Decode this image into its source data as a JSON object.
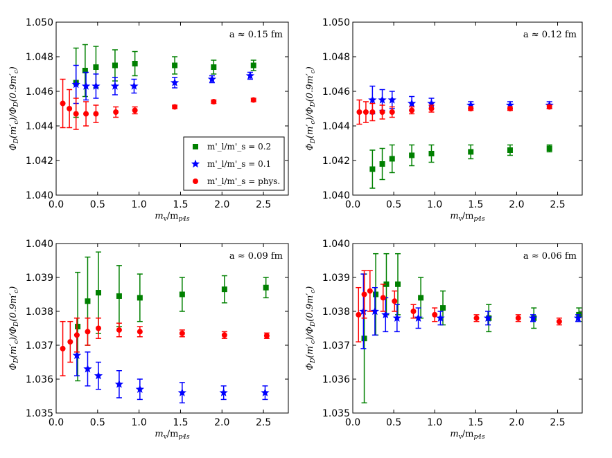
{
  "chart_data": [
    {
      "type": "scatter",
      "title": "",
      "annotation": "a ≈ 0.15 fm",
      "xlabel": "m_v/m_p4s",
      "ylabel": "Φ_D(m'_c)/Φ_D(0.9m'_c)",
      "xlim": [
        0,
        2.8
      ],
      "ylim": [
        1.04,
        1.05
      ],
      "xticks": [
        "0.0",
        "0.5",
        "1.0",
        "1.5",
        "2.0",
        "2.5"
      ],
      "yticks": [
        "1.040",
        "1.042",
        "1.044",
        "1.046",
        "1.048",
        "1.050"
      ],
      "legend": "bottom-right",
      "series": [
        {
          "name": "m'_l/m'_s = 0.2",
          "color": "#008000",
          "marker": "square",
          "x": [
            0.24,
            0.35,
            0.48,
            0.71,
            0.95,
            1.43,
            1.9,
            2.38
          ],
          "y": [
            1.0465,
            1.0472,
            1.0474,
            1.0475,
            1.0476,
            1.0475,
            1.0474,
            1.0475
          ],
          "err": [
            0.002,
            0.0015,
            0.0012,
            0.0009,
            0.0007,
            0.0005,
            0.0004,
            0.0003
          ]
        },
        {
          "name": "m'_l/m'_s = 0.1",
          "color": "#0000ff",
          "marker": "star",
          "x": [
            0.24,
            0.36,
            0.48,
            0.71,
            0.94,
            1.43,
            1.88,
            2.34
          ],
          "y": [
            1.0464,
            1.0463,
            1.0463,
            1.0463,
            1.0463,
            1.0465,
            1.0467,
            1.0469
          ],
          "err": [
            0.0011,
            0.0008,
            0.0007,
            0.0005,
            0.0004,
            0.0003,
            0.0002,
            0.0002
          ]
        },
        {
          "name": "m'_l/m'_s = phys.",
          "color": "#ff0000",
          "marker": "circle",
          "x": [
            0.08,
            0.16,
            0.24,
            0.36,
            0.48,
            0.72,
            0.95,
            1.43,
            1.9,
            2.38
          ],
          "y": [
            1.0453,
            1.045,
            1.0447,
            1.0447,
            1.0447,
            1.0448,
            1.0449,
            1.0451,
            1.0454,
            1.0455
          ],
          "err": [
            0.0014,
            0.0011,
            0.0009,
            0.0007,
            0.0005,
            0.0003,
            0.0002,
            0.0001,
            0.0001,
            0.0001
          ]
        }
      ]
    },
    {
      "type": "scatter",
      "title": "",
      "annotation": "a ≈ 0.12 fm",
      "xlabel": "m_v/m_p4s",
      "ylabel": "Φ_D(m'_c)/Φ_D(0.9m'_c)",
      "xlim": [
        0,
        2.8
      ],
      "ylim": [
        1.04,
        1.05
      ],
      "xticks": [
        "0.0",
        "0.5",
        "1.0",
        "1.5",
        "2.0",
        "2.5"
      ],
      "yticks": [
        "1.040",
        "1.042",
        "1.044",
        "1.046",
        "1.048",
        "1.050"
      ],
      "legend": "",
      "series": [
        {
          "name": "m'_l/m'_s = 0.2",
          "color": "#008000",
          "marker": "square",
          "x": [
            0.24,
            0.36,
            0.48,
            0.72,
            0.96,
            1.44,
            1.92,
            2.4
          ],
          "y": [
            1.0415,
            1.0418,
            1.0421,
            1.0423,
            1.0424,
            1.0425,
            1.0426,
            1.0427
          ],
          "err": [
            0.0011,
            0.0009,
            0.0008,
            0.0006,
            0.0005,
            0.0004,
            0.0003,
            0.0002
          ]
        },
        {
          "name": "m'_l/m'_s = 0.1",
          "color": "#0000ff",
          "marker": "star",
          "x": [
            0.24,
            0.36,
            0.48,
            0.72,
            0.96,
            1.44,
            1.92,
            2.4
          ],
          "y": [
            1.0455,
            1.0455,
            1.0455,
            1.0453,
            1.0453,
            1.0452,
            1.0452,
            1.0452
          ],
          "err": [
            0.0008,
            0.0006,
            0.0005,
            0.0004,
            0.0003,
            0.0002,
            0.0002,
            0.0002
          ]
        },
        {
          "name": "m'_l/m'_s = phys.",
          "color": "#ff0000",
          "marker": "circle",
          "x": [
            0.08,
            0.16,
            0.24,
            0.36,
            0.48,
            0.72,
            0.96,
            1.44,
            1.92,
            2.4
          ],
          "y": [
            1.0448,
            1.0448,
            1.0448,
            1.0448,
            1.0448,
            1.0449,
            1.045,
            1.045,
            1.045,
            1.0451
          ],
          "err": [
            0.0007,
            0.0006,
            0.0005,
            0.0004,
            0.0003,
            0.0002,
            0.0002,
            0.0001,
            0.0001,
            0.0001
          ]
        }
      ]
    },
    {
      "type": "scatter",
      "title": "",
      "annotation": "a ≈ 0.09 fm",
      "xlabel": "m_v/m_p4s",
      "ylabel": "Φ_D(m'_c)/Φ_D(0.9m'_c)",
      "xlim": [
        0,
        2.8
      ],
      "ylim": [
        1.035,
        1.04
      ],
      "xticks": [
        "0.0",
        "0.5",
        "1.0",
        "1.5",
        "2.0",
        "2.5"
      ],
      "yticks": [
        "1.035",
        "1.036",
        "1.037",
        "1.038",
        "1.039",
        "1.040"
      ],
      "legend": "",
      "series": [
        {
          "name": "m'_l/m'_s = 0.2",
          "color": "#008000",
          "marker": "square",
          "x": [
            0.26,
            0.38,
            0.51,
            0.76,
            1.01,
            1.52,
            2.03,
            2.53
          ],
          "y": [
            1.03755,
            1.0383,
            1.03855,
            1.03845,
            1.0384,
            1.0385,
            1.03865,
            1.0387
          ],
          "err": [
            0.0016,
            0.0013,
            0.0012,
            0.0009,
            0.0007,
            0.0005,
            0.0004,
            0.0003
          ]
        },
        {
          "name": "m'_l/m'_s = 0.1",
          "color": "#0000ff",
          "marker": "star",
          "x": [
            0.25,
            0.38,
            0.51,
            0.76,
            1.01,
            1.52,
            2.02,
            2.52
          ],
          "y": [
            1.0367,
            1.0363,
            1.0361,
            1.03585,
            1.0357,
            1.0356,
            1.0356,
            1.0356
          ],
          "err": [
            0.0006,
            0.0005,
            0.0004,
            0.0004,
            0.0003,
            0.0003,
            0.0002,
            0.0002
          ]
        },
        {
          "name": "m'_l/m'_s = phys.",
          "color": "#ff0000",
          "marker": "circle",
          "x": [
            0.08,
            0.17,
            0.25,
            0.38,
            0.51,
            0.76,
            1.01,
            1.52,
            2.03,
            2.54
          ],
          "y": [
            1.0369,
            1.0371,
            1.0373,
            1.0374,
            1.0375,
            1.03745,
            1.0374,
            1.03735,
            1.0373,
            1.03728
          ],
          "err": [
            0.0008,
            0.0006,
            0.0005,
            0.0004,
            0.0003,
            0.0002,
            0.00015,
            0.0001,
            0.0001,
            8e-05
          ]
        }
      ]
    },
    {
      "type": "scatter",
      "title": "",
      "annotation": "a ≈ 0.06 fm",
      "xlabel": "m_v/m_p4s",
      "ylabel": "Φ_D(m'_c)/Φ_D(0.9m'_c)",
      "xlim": [
        0,
        2.8
      ],
      "ylim": [
        1.035,
        1.04
      ],
      "xticks": [
        "0.0",
        "0.5",
        "1.0",
        "1.5",
        "2.0",
        "2.5"
      ],
      "yticks": [
        "1.035",
        "1.036",
        "1.037",
        "1.038",
        "1.039",
        "1.040"
      ],
      "legend": "",
      "series": [
        {
          "name": "m'_l/m'_s = 0.2",
          "color": "#008000",
          "marker": "square",
          "x": [
            0.14,
            0.28,
            0.41,
            0.55,
            0.83,
            1.1,
            1.66,
            2.21,
            2.76
          ],
          "y": [
            1.0372,
            1.0385,
            1.0388,
            1.0388,
            1.0384,
            1.0381,
            1.0378,
            1.0378,
            1.0379
          ],
          "err": [
            0.0019,
            0.0012,
            0.0009,
            0.0009,
            0.0006,
            0.0005,
            0.0004,
            0.0003,
            0.0002
          ]
        },
        {
          "name": "m'_l/m'_s = 0.1",
          "color": "#0000ff",
          "marker": "star",
          "x": [
            0.13,
            0.27,
            0.4,
            0.54,
            0.8,
            1.07,
            1.65,
            2.2,
            2.75
          ],
          "y": [
            1.038,
            1.038,
            1.0379,
            1.0378,
            1.0378,
            1.0378,
            1.0378,
            1.0378,
            1.0378
          ],
          "err": [
            0.0011,
            0.0007,
            0.0005,
            0.0004,
            0.0003,
            0.0002,
            0.0002,
            0.0001,
            0.0001
          ]
        },
        {
          "name": "m'_l/m'_s = phys.",
          "color": "#ff0000",
          "marker": "circle",
          "x": [
            0.07,
            0.14,
            0.21,
            0.37,
            0.51,
            0.74,
            1.0,
            1.51,
            2.02,
            2.52
          ],
          "y": [
            1.0379,
            1.0385,
            1.0386,
            1.0384,
            1.0383,
            1.038,
            1.0379,
            1.0378,
            1.0378,
            1.0377
          ],
          "err": [
            0.0008,
            0.0007,
            0.0006,
            0.0004,
            0.0003,
            0.0002,
            0.0002,
            0.0001,
            0.0001,
            0.0001
          ]
        }
      ]
    }
  ]
}
